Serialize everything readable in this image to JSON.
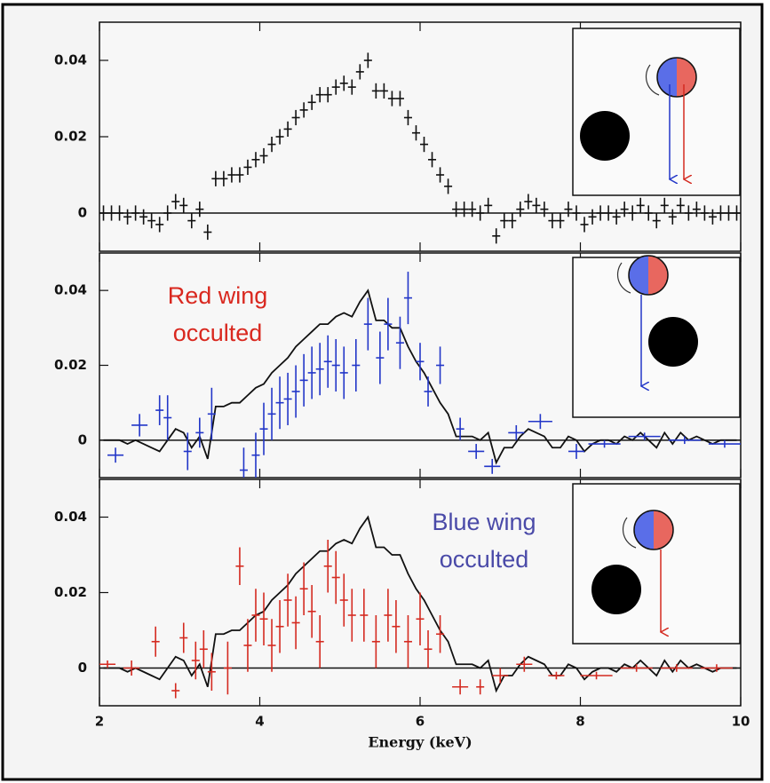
{
  "chart_data": [
    {
      "type": "errorbar",
      "xlim": [
        2,
        10
      ],
      "ylim": [
        -0.01,
        0.05
      ],
      "yticks": [
        0,
        0.02,
        0.04
      ],
      "series": [
        {
          "mode": "errorbar",
          "color": "#111111",
          "xerr": 0.05,
          "yerr": 0.002,
          "x": [
            2.05,
            2.15,
            2.25,
            2.35,
            2.45,
            2.55,
            2.65,
            2.75,
            2.85,
            2.95,
            3.05,
            3.15,
            3.25,
            3.35,
            3.45,
            3.55,
            3.65,
            3.75,
            3.85,
            3.95,
            4.05,
            4.15,
            4.25,
            4.35,
            4.45,
            4.55,
            4.65,
            4.75,
            4.85,
            4.95,
            5.05,
            5.15,
            5.25,
            5.35,
            5.45,
            5.55,
            5.65,
            5.75,
            5.85,
            5.95,
            6.05,
            6.15,
            6.25,
            6.35,
            6.45,
            6.55,
            6.65,
            6.75,
            6.85,
            6.95,
            7.05,
            7.15,
            7.25,
            7.35,
            7.45,
            7.55,
            7.65,
            7.75,
            7.85,
            7.95,
            8.05,
            8.15,
            8.25,
            8.35,
            8.45,
            8.55,
            8.65,
            8.75,
            8.85,
            8.95,
            9.05,
            9.15,
            9.25,
            9.35,
            9.45,
            9.55,
            9.65,
            9.75,
            9.85,
            9.95
          ],
          "values": [
            0,
            0,
            0,
            -0.001,
            0,
            -0.001,
            -0.002,
            -0.003,
            0,
            0.003,
            0.002,
            -0.002,
            0.001,
            -0.005,
            0.009,
            0.009,
            0.01,
            0.01,
            0.012,
            0.014,
            0.015,
            0.018,
            0.02,
            0.022,
            0.025,
            0.027,
            0.029,
            0.031,
            0.031,
            0.033,
            0.034,
            0.033,
            0.037,
            0.04,
            0.032,
            0.032,
            0.03,
            0.03,
            0.025,
            0.021,
            0.018,
            0.014,
            0.01,
            0.007,
            0.001,
            0.001,
            0.001,
            0,
            0.002,
            -0.006,
            -0.002,
            -0.002,
            0.001,
            0.003,
            0.002,
            0.001,
            -0.002,
            -0.002,
            0.001,
            0,
            -0.003,
            -0.001,
            0,
            0,
            -0.001,
            0.001,
            0,
            0.002,
            0,
            -0.002,
            0.002,
            -0.001,
            0.002,
            0,
            0.001,
            0,
            -0.001,
            0,
            0,
            0
          ]
        }
      ]
    },
    {
      "type": "errorbar",
      "xlim": [
        2,
        10
      ],
      "ylim": [
        -0.01,
        0.05
      ],
      "yticks": [
        0,
        0.02,
        0.04
      ],
      "annotation": {
        "lines": [
          "Red wing",
          "occulted"
        ],
        "color": "#d9281f"
      },
      "series": [
        {
          "mode": "line",
          "color": "#111111",
          "x": [
            2.05,
            2.15,
            2.25,
            2.35,
            2.45,
            2.55,
            2.65,
            2.75,
            2.85,
            2.95,
            3.05,
            3.15,
            3.25,
            3.35,
            3.45,
            3.55,
            3.65,
            3.75,
            3.85,
            3.95,
            4.05,
            4.15,
            4.25,
            4.35,
            4.45,
            4.55,
            4.65,
            4.75,
            4.85,
            4.95,
            5.05,
            5.15,
            5.25,
            5.35,
            5.45,
            5.55,
            5.65,
            5.75,
            5.85,
            5.95,
            6.05,
            6.15,
            6.25,
            6.35,
            6.45,
            6.55,
            6.65,
            6.75,
            6.85,
            6.95,
            7.05,
            7.15,
            7.25,
            7.35,
            7.45,
            7.55,
            7.65,
            7.75,
            7.85,
            7.95,
            8.05,
            8.15,
            8.25,
            8.35,
            8.45,
            8.55,
            8.65,
            8.75,
            8.85,
            8.95,
            9.05,
            9.15,
            9.25,
            9.35,
            9.45,
            9.55,
            9.65,
            9.75,
            9.85,
            9.95
          ],
          "values": [
            0,
            0,
            0,
            -0.001,
            0,
            -0.001,
            -0.002,
            -0.003,
            0,
            0.003,
            0.002,
            -0.002,
            0.001,
            -0.005,
            0.009,
            0.009,
            0.01,
            0.01,
            0.012,
            0.014,
            0.015,
            0.018,
            0.02,
            0.022,
            0.025,
            0.027,
            0.029,
            0.031,
            0.031,
            0.033,
            0.034,
            0.033,
            0.037,
            0.04,
            0.032,
            0.032,
            0.03,
            0.03,
            0.025,
            0.021,
            0.018,
            0.014,
            0.01,
            0.007,
            0.001,
            0.001,
            0.001,
            0,
            0.002,
            -0.006,
            -0.002,
            -0.002,
            0.001,
            0.003,
            0.002,
            0.001,
            -0.002,
            -0.002,
            0.001,
            0,
            -0.003,
            -0.001,
            0,
            0,
            -0.001,
            0.001,
            0,
            0.002,
            0,
            -0.002,
            0.002,
            -0.001,
            0.002,
            0,
            0.001,
            0,
            -0.001,
            0,
            0,
            0
          ]
        },
        {
          "mode": "errorbar",
          "color": "#2236c8",
          "x": [
            2.2,
            2.5,
            2.75,
            2.85,
            3.1,
            3.25,
            3.4,
            3.8,
            3.95,
            4.05,
            4.15,
            4.25,
            4.35,
            4.45,
            4.55,
            4.65,
            4.75,
            4.85,
            4.95,
            5.05,
            5.2,
            5.35,
            5.5,
            5.6,
            5.75,
            5.85,
            6.0,
            6.1,
            6.25,
            6.5,
            6.7,
            6.9,
            7.2,
            7.5,
            7.95,
            8.3,
            8.8,
            9.3,
            9.8
          ],
          "values": [
            -0.004,
            0.004,
            0.008,
            0.006,
            -0.003,
            0.002,
            0.007,
            -0.008,
            -0.004,
            0.003,
            0.007,
            0.01,
            0.011,
            0.013,
            0.016,
            0.018,
            0.019,
            0.021,
            0.02,
            0.018,
            0.02,
            0.031,
            0.022,
            0.031,
            0.026,
            0.038,
            0.021,
            0.013,
            0.02,
            0.003,
            -0.003,
            -0.007,
            0.002,
            0.005,
            -0.003,
            -0.001,
            0.001,
            0,
            -0.001
          ],
          "xerr": [
            0.1,
            0.1,
            0.05,
            0.05,
            0.05,
            0.05,
            0.05,
            0.05,
            0.05,
            0.05,
            0.05,
            0.05,
            0.05,
            0.05,
            0.05,
            0.05,
            0.05,
            0.05,
            0.05,
            0.05,
            0.05,
            0.05,
            0.05,
            0.05,
            0.05,
            0.05,
            0.05,
            0.05,
            0.05,
            0.05,
            0.1,
            0.1,
            0.1,
            0.15,
            0.1,
            0.2,
            0.2,
            0.2,
            0.2
          ],
          "yerr": [
            0.002,
            0.003,
            0.004,
            0.006,
            0.005,
            0.004,
            0.007,
            0.006,
            0.006,
            0.007,
            0.007,
            0.007,
            0.007,
            0.007,
            0.007,
            0.007,
            0.007,
            0.007,
            0.007,
            0.007,
            0.007,
            0.007,
            0.007,
            0.007,
            0.007,
            0.007,
            0.005,
            0.004,
            0.005,
            0.003,
            0.002,
            0.002,
            0.002,
            0.002,
            0.002,
            0.001,
            0.001,
            0.001,
            0.001
          ]
        }
      ]
    },
    {
      "type": "errorbar",
      "xlim": [
        2,
        10
      ],
      "ylim": [
        -0.01,
        0.05
      ],
      "yticks": [
        0,
        0.02,
        0.04
      ],
      "xticks": [
        2,
        4,
        6,
        8,
        10
      ],
      "xlabel": "Energy (keV)",
      "annotation": {
        "lines": [
          "Blue wing",
          "occulted"
        ],
        "color": "#4a4aa8"
      },
      "series": [
        {
          "mode": "line",
          "color": "#111111",
          "x": [
            2.05,
            2.15,
            2.25,
            2.35,
            2.45,
            2.55,
            2.65,
            2.75,
            2.85,
            2.95,
            3.05,
            3.15,
            3.25,
            3.35,
            3.45,
            3.55,
            3.65,
            3.75,
            3.85,
            3.95,
            4.05,
            4.15,
            4.25,
            4.35,
            4.45,
            4.55,
            4.65,
            4.75,
            4.85,
            4.95,
            5.05,
            5.15,
            5.25,
            5.35,
            5.45,
            5.55,
            5.65,
            5.75,
            5.85,
            5.95,
            6.05,
            6.15,
            6.25,
            6.35,
            6.45,
            6.55,
            6.65,
            6.75,
            6.85,
            6.95,
            7.05,
            7.15,
            7.25,
            7.35,
            7.45,
            7.55,
            7.65,
            7.75,
            7.85,
            7.95,
            8.05,
            8.15,
            8.25,
            8.35,
            8.45,
            8.55,
            8.65,
            8.75,
            8.85,
            8.95,
            9.05,
            9.15,
            9.25,
            9.35,
            9.45,
            9.55,
            9.65,
            9.75,
            9.85,
            9.95
          ],
          "values": [
            0,
            0,
            0,
            -0.001,
            0,
            -0.001,
            -0.002,
            -0.003,
            0,
            0.003,
            0.002,
            -0.002,
            0.001,
            -0.005,
            0.009,
            0.009,
            0.01,
            0.01,
            0.012,
            0.014,
            0.015,
            0.018,
            0.02,
            0.022,
            0.025,
            0.027,
            0.029,
            0.031,
            0.031,
            0.033,
            0.034,
            0.033,
            0.037,
            0.04,
            0.032,
            0.032,
            0.03,
            0.03,
            0.025,
            0.021,
            0.018,
            0.014,
            0.01,
            0.007,
            0.001,
            0.001,
            0.001,
            0,
            0.002,
            -0.006,
            -0.002,
            -0.002,
            0.001,
            0.003,
            0.002,
            0.001,
            -0.002,
            -0.002,
            0.001,
            0,
            -0.003,
            -0.001,
            0,
            0,
            -0.001,
            0.001,
            0,
            0.002,
            0,
            -0.002,
            0.002,
            -0.001,
            0.002,
            0,
            0.001,
            0,
            -0.001,
            0,
            0,
            0
          ]
        },
        {
          "mode": "errorbar",
          "color": "#d42a20",
          "x": [
            2.1,
            2.4,
            2.7,
            2.95,
            3.05,
            3.2,
            3.3,
            3.4,
            3.6,
            3.75,
            3.85,
            3.95,
            4.05,
            4.15,
            4.25,
            4.35,
            4.45,
            4.55,
            4.65,
            4.75,
            4.85,
            4.95,
            5.05,
            5.15,
            5.3,
            5.45,
            5.6,
            5.7,
            5.85,
            6.0,
            6.1,
            6.25,
            6.5,
            6.75,
            7.0,
            7.3,
            7.7,
            8.2,
            8.7,
            9.2,
            9.7
          ],
          "values": [
            0.001,
            0,
            0.007,
            -0.006,
            0.008,
            0.002,
            0.005,
            -0.001,
            0,
            0.027,
            0.006,
            0.014,
            0.013,
            0.006,
            0.011,
            0.018,
            0.012,
            0.021,
            0.015,
            0.007,
            0.027,
            0.024,
            0.018,
            0.014,
            0.014,
            0.007,
            0.014,
            0.011,
            0.007,
            0.013,
            0.005,
            0.009,
            -0.005,
            -0.005,
            -0.002,
            0.001,
            -0.002,
            -0.002,
            0,
            0,
            0
          ],
          "xerr": [
            0.1,
            0.1,
            0.05,
            0.05,
            0.05,
            0.05,
            0.05,
            0.05,
            0.05,
            0.05,
            0.05,
            0.05,
            0.05,
            0.05,
            0.05,
            0.05,
            0.05,
            0.05,
            0.05,
            0.05,
            0.05,
            0.05,
            0.05,
            0.05,
            0.05,
            0.05,
            0.05,
            0.05,
            0.05,
            0.05,
            0.05,
            0.05,
            0.1,
            0.05,
            0.1,
            0.1,
            0.1,
            0.2,
            0.2,
            0.2,
            0.2
          ],
          "yerr": [
            0.001,
            0.002,
            0.004,
            0.002,
            0.004,
            0.005,
            0.005,
            0.005,
            0.007,
            0.005,
            0.007,
            0.007,
            0.007,
            0.007,
            0.007,
            0.007,
            0.007,
            0.007,
            0.007,
            0.007,
            0.007,
            0.007,
            0.007,
            0.007,
            0.007,
            0.007,
            0.007,
            0.007,
            0.007,
            0.007,
            0.005,
            0.005,
            0.002,
            0.002,
            0.002,
            0.002,
            0.001,
            0.001,
            0.001,
            0.001,
            0.001
          ]
        }
      ]
    }
  ]
}
